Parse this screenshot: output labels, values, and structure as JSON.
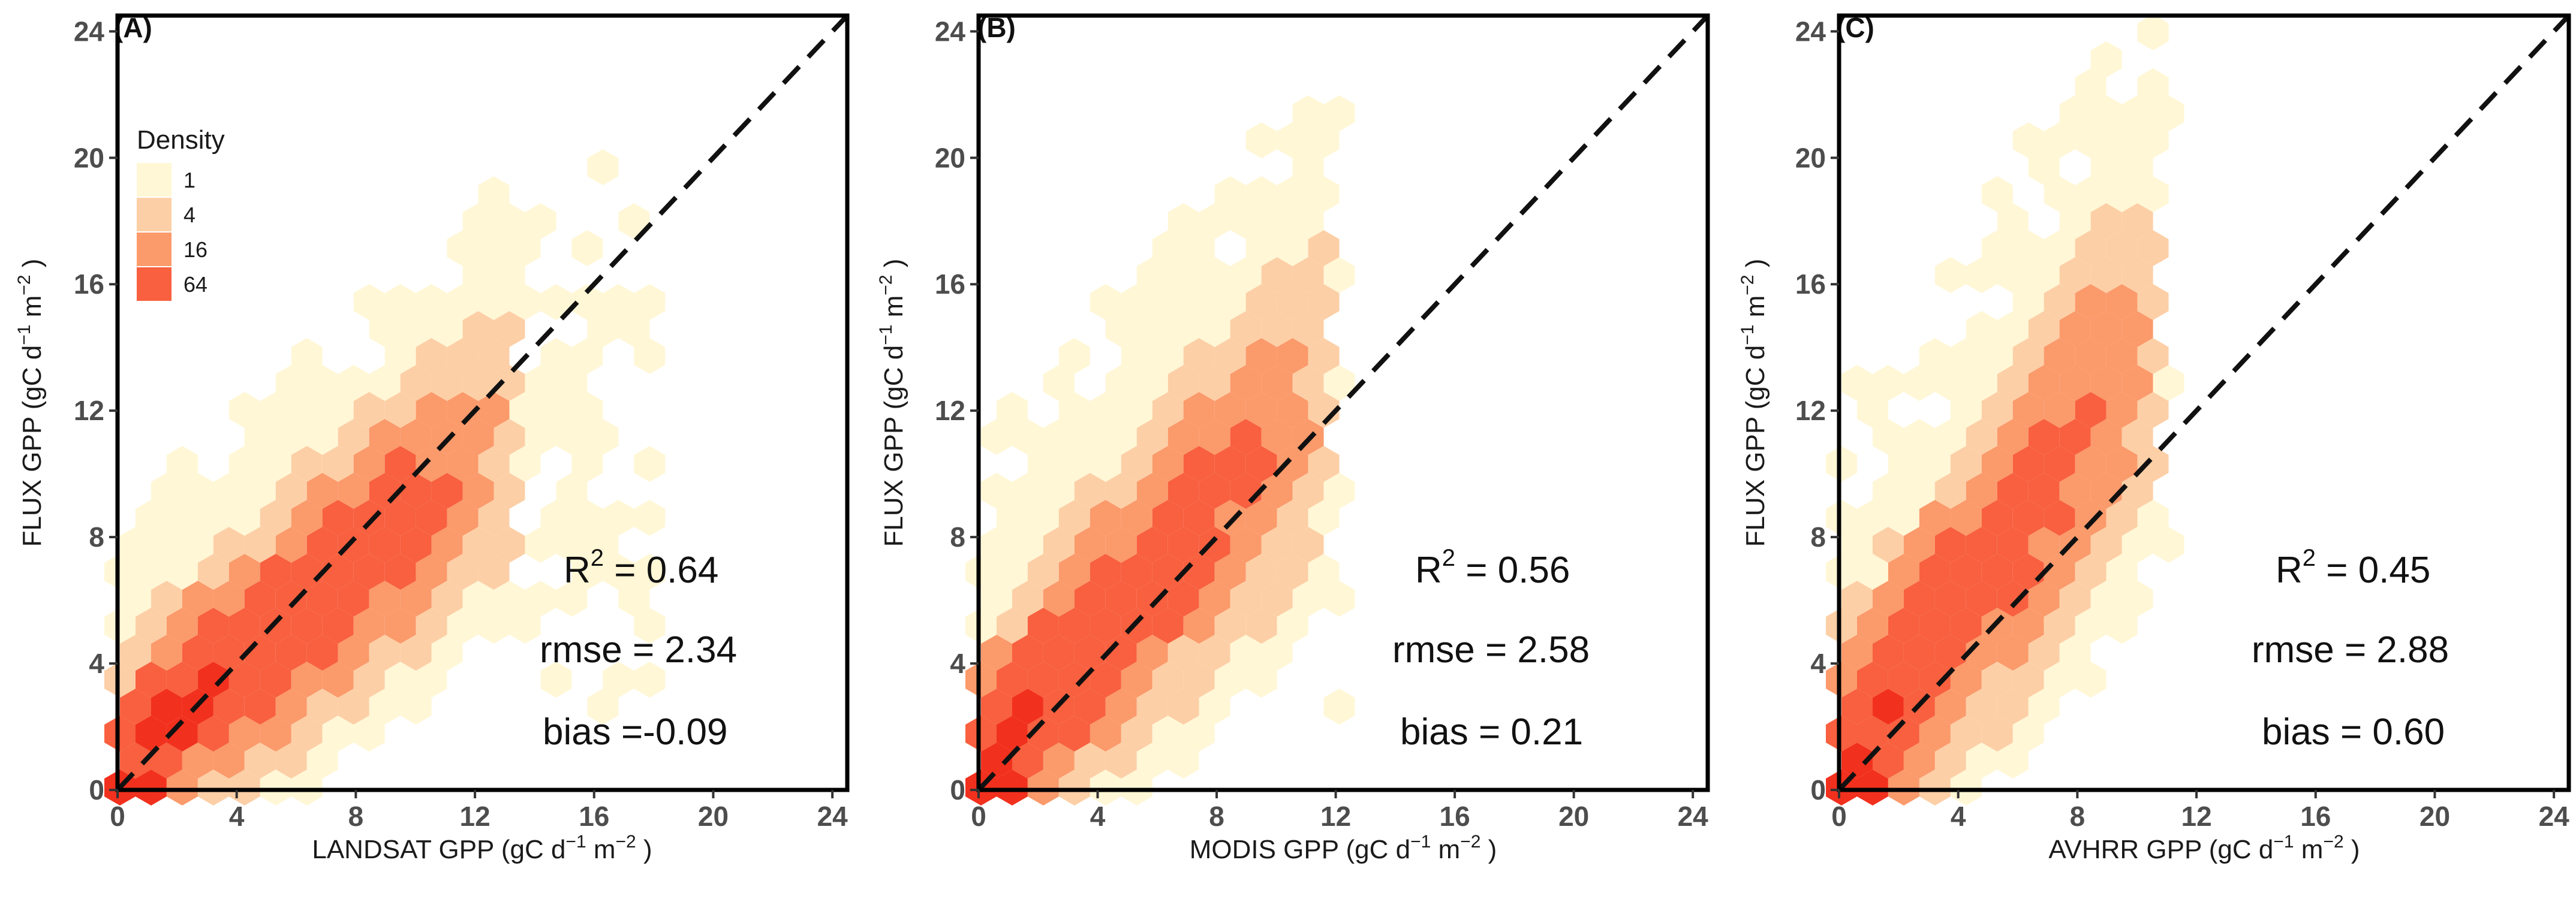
{
  "colors": {
    "density_scale": [
      "#FFF7D6",
      "#FDCFA6",
      "#FB9A6B",
      "#F8603F"
    ],
    "dense_core": "#F2301E",
    "diagonal": "#111111",
    "frame": "#000000"
  },
  "legend": {
    "title": "Density",
    "entries": [
      {
        "label": "1"
      },
      {
        "label": "4"
      },
      {
        "label": "16"
      },
      {
        "label": "64"
      }
    ]
  },
  "chart_data": [
    {
      "type": "hexbin",
      "panel_label": "(A)",
      "xlabel_main": "LANDSAT GPP (gC d",
      "xlabel_sup1": "−1",
      "xlabel_mid": " m",
      "xlabel_sup2": "−2",
      "xlabel_end": " )",
      "ylabel_main": "FLUX GPP (gC d",
      "ylabel_sup1": "−1",
      "ylabel_mid": " m",
      "ylabel_sup2": "−2",
      "ylabel_end": " )",
      "xlim": [
        0,
        24.5
      ],
      "ylim": [
        0,
        24.5
      ],
      "ticks": [
        0,
        4,
        8,
        12,
        16,
        20,
        24
      ],
      "tick_labels": [
        "0",
        "4",
        "8",
        "12",
        "16",
        "20",
        "24"
      ],
      "diagonal": "1:1 dashed",
      "stats": {
        "r2_prefix": "R",
        "r2_sup": "2",
        "r2_value": " = 0.64",
        "rmse": "rmse = 2.34",
        "bias": "bias =-0.09"
      },
      "distribution": {
        "slope": 0.82,
        "spread": 1.9,
        "x_max": 13.6,
        "upper_spread": 3.2,
        "outliers_x_max": 18.2,
        "outlier_level": 4.5
      }
    },
    {
      "type": "hexbin",
      "panel_label": "(B)",
      "xlabel_main": "MODIS GPP (gC d",
      "xlabel_sup1": "−1",
      "xlabel_mid": " m",
      "xlabel_sup2": "−2",
      "xlabel_end": " )",
      "ylabel_main": "FLUX GPP (gC d",
      "ylabel_sup1": "−1",
      "ylabel_mid": " m",
      "ylabel_sup2": "−2",
      "ylabel_end": " )",
      "xlim": [
        0,
        24.5
      ],
      "ylim": [
        0,
        24.5
      ],
      "ticks": [
        0,
        4,
        8,
        12,
        16,
        20,
        24
      ],
      "tick_labels": [
        "0",
        "4",
        "8",
        "12",
        "16",
        "20",
        "24"
      ],
      "diagonal": "1:1 dashed",
      "stats": {
        "r2_prefix": "R",
        "r2_sup": "2",
        "r2_value": "  = 0.56",
        "rmse": "rmse = 2.58",
        "bias": "bias = 0.21"
      },
      "distribution": {
        "slope": 1.05,
        "spread": 2.1,
        "x_max": 11.8,
        "upper_spread": 4.0,
        "outliers_x_max": 12.6,
        "outlier_level": 6.0
      }
    },
    {
      "type": "hexbin",
      "panel_label": "(C)",
      "xlabel_main": "AVHRR GPP (gC d",
      "xlabel_sup1": "−1",
      "xlabel_mid": " m",
      "xlabel_sup2": "−2",
      "xlabel_end": " )",
      "ylabel_main": "FLUX GPP (gC d",
      "ylabel_sup1": "−1",
      "ylabel_mid": " m",
      "ylabel_sup2": "−2",
      "ylabel_end": " )",
      "xlim": [
        0,
        24.5
      ],
      "ylim": [
        0,
        24.5
      ],
      "ticks": [
        0,
        4,
        8,
        12,
        16,
        20,
        24
      ],
      "tick_labels": [
        "0",
        "4",
        "8",
        "12",
        "16",
        "20",
        "24"
      ],
      "diagonal": "1:1 dashed",
      "stats": {
        "r2_prefix": "R",
        "r2_sup": "2",
        "r2_value": " = 0.45",
        "rmse": "rmse = 2.88",
        "bias": "bias = 0.60"
      },
      "distribution": {
        "slope": 1.3,
        "spread": 2.3,
        "x_max": 11.0,
        "upper_spread": 4.5,
        "outliers_x_max": 11.4,
        "outlier_level": 6.5
      }
    }
  ]
}
